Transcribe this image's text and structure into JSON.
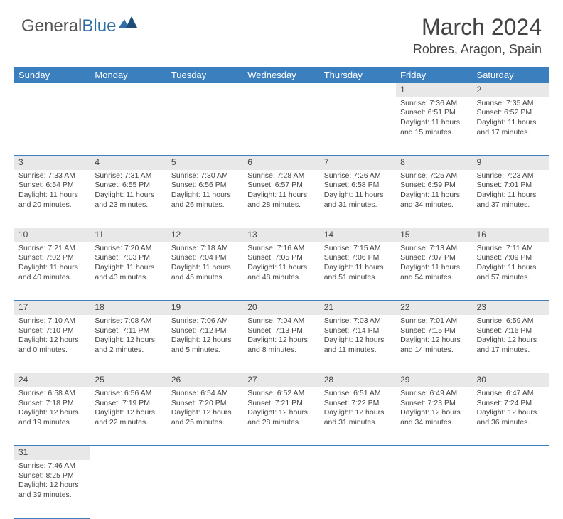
{
  "logo": {
    "general": "General",
    "blue": "Blue"
  },
  "title": "March 2024",
  "location": "Robres, Aragon, Spain",
  "colors": {
    "header_bg": "#3b7fbf",
    "header_text": "#ffffff",
    "daynum_bg": "#e8e8e8",
    "row_border": "#3b7fbf",
    "text": "#444444",
    "logo_accent": "#2f6fa8"
  },
  "days_of_week": [
    "Sunday",
    "Monday",
    "Tuesday",
    "Wednesday",
    "Thursday",
    "Friday",
    "Saturday"
  ],
  "weeks": [
    [
      null,
      null,
      null,
      null,
      null,
      {
        "n": "1",
        "sr": "Sunrise: 7:36 AM",
        "ss": "Sunset: 6:51 PM",
        "dl": "Daylight: 11 hours and 15 minutes."
      },
      {
        "n": "2",
        "sr": "Sunrise: 7:35 AM",
        "ss": "Sunset: 6:52 PM",
        "dl": "Daylight: 11 hours and 17 minutes."
      }
    ],
    [
      {
        "n": "3",
        "sr": "Sunrise: 7:33 AM",
        "ss": "Sunset: 6:54 PM",
        "dl": "Daylight: 11 hours and 20 minutes."
      },
      {
        "n": "4",
        "sr": "Sunrise: 7:31 AM",
        "ss": "Sunset: 6:55 PM",
        "dl": "Daylight: 11 hours and 23 minutes."
      },
      {
        "n": "5",
        "sr": "Sunrise: 7:30 AM",
        "ss": "Sunset: 6:56 PM",
        "dl": "Daylight: 11 hours and 26 minutes."
      },
      {
        "n": "6",
        "sr": "Sunrise: 7:28 AM",
        "ss": "Sunset: 6:57 PM",
        "dl": "Daylight: 11 hours and 28 minutes."
      },
      {
        "n": "7",
        "sr": "Sunrise: 7:26 AM",
        "ss": "Sunset: 6:58 PM",
        "dl": "Daylight: 11 hours and 31 minutes."
      },
      {
        "n": "8",
        "sr": "Sunrise: 7:25 AM",
        "ss": "Sunset: 6:59 PM",
        "dl": "Daylight: 11 hours and 34 minutes."
      },
      {
        "n": "9",
        "sr": "Sunrise: 7:23 AM",
        "ss": "Sunset: 7:01 PM",
        "dl": "Daylight: 11 hours and 37 minutes."
      }
    ],
    [
      {
        "n": "10",
        "sr": "Sunrise: 7:21 AM",
        "ss": "Sunset: 7:02 PM",
        "dl": "Daylight: 11 hours and 40 minutes."
      },
      {
        "n": "11",
        "sr": "Sunrise: 7:20 AM",
        "ss": "Sunset: 7:03 PM",
        "dl": "Daylight: 11 hours and 43 minutes."
      },
      {
        "n": "12",
        "sr": "Sunrise: 7:18 AM",
        "ss": "Sunset: 7:04 PM",
        "dl": "Daylight: 11 hours and 45 minutes."
      },
      {
        "n": "13",
        "sr": "Sunrise: 7:16 AM",
        "ss": "Sunset: 7:05 PM",
        "dl": "Daylight: 11 hours and 48 minutes."
      },
      {
        "n": "14",
        "sr": "Sunrise: 7:15 AM",
        "ss": "Sunset: 7:06 PM",
        "dl": "Daylight: 11 hours and 51 minutes."
      },
      {
        "n": "15",
        "sr": "Sunrise: 7:13 AM",
        "ss": "Sunset: 7:07 PM",
        "dl": "Daylight: 11 hours and 54 minutes."
      },
      {
        "n": "16",
        "sr": "Sunrise: 7:11 AM",
        "ss": "Sunset: 7:09 PM",
        "dl": "Daylight: 11 hours and 57 minutes."
      }
    ],
    [
      {
        "n": "17",
        "sr": "Sunrise: 7:10 AM",
        "ss": "Sunset: 7:10 PM",
        "dl": "Daylight: 12 hours and 0 minutes."
      },
      {
        "n": "18",
        "sr": "Sunrise: 7:08 AM",
        "ss": "Sunset: 7:11 PM",
        "dl": "Daylight: 12 hours and 2 minutes."
      },
      {
        "n": "19",
        "sr": "Sunrise: 7:06 AM",
        "ss": "Sunset: 7:12 PM",
        "dl": "Daylight: 12 hours and 5 minutes."
      },
      {
        "n": "20",
        "sr": "Sunrise: 7:04 AM",
        "ss": "Sunset: 7:13 PM",
        "dl": "Daylight: 12 hours and 8 minutes."
      },
      {
        "n": "21",
        "sr": "Sunrise: 7:03 AM",
        "ss": "Sunset: 7:14 PM",
        "dl": "Daylight: 12 hours and 11 minutes."
      },
      {
        "n": "22",
        "sr": "Sunrise: 7:01 AM",
        "ss": "Sunset: 7:15 PM",
        "dl": "Daylight: 12 hours and 14 minutes."
      },
      {
        "n": "23",
        "sr": "Sunrise: 6:59 AM",
        "ss": "Sunset: 7:16 PM",
        "dl": "Daylight: 12 hours and 17 minutes."
      }
    ],
    [
      {
        "n": "24",
        "sr": "Sunrise: 6:58 AM",
        "ss": "Sunset: 7:18 PM",
        "dl": "Daylight: 12 hours and 19 minutes."
      },
      {
        "n": "25",
        "sr": "Sunrise: 6:56 AM",
        "ss": "Sunset: 7:19 PM",
        "dl": "Daylight: 12 hours and 22 minutes."
      },
      {
        "n": "26",
        "sr": "Sunrise: 6:54 AM",
        "ss": "Sunset: 7:20 PM",
        "dl": "Daylight: 12 hours and 25 minutes."
      },
      {
        "n": "27",
        "sr": "Sunrise: 6:52 AM",
        "ss": "Sunset: 7:21 PM",
        "dl": "Daylight: 12 hours and 28 minutes."
      },
      {
        "n": "28",
        "sr": "Sunrise: 6:51 AM",
        "ss": "Sunset: 7:22 PM",
        "dl": "Daylight: 12 hours and 31 minutes."
      },
      {
        "n": "29",
        "sr": "Sunrise: 6:49 AM",
        "ss": "Sunset: 7:23 PM",
        "dl": "Daylight: 12 hours and 34 minutes."
      },
      {
        "n": "30",
        "sr": "Sunrise: 6:47 AM",
        "ss": "Sunset: 7:24 PM",
        "dl": "Daylight: 12 hours and 36 minutes."
      }
    ],
    [
      {
        "n": "31",
        "sr": "Sunrise: 7:46 AM",
        "ss": "Sunset: 8:25 PM",
        "dl": "Daylight: 12 hours and 39 minutes."
      },
      null,
      null,
      null,
      null,
      null,
      null
    ]
  ]
}
